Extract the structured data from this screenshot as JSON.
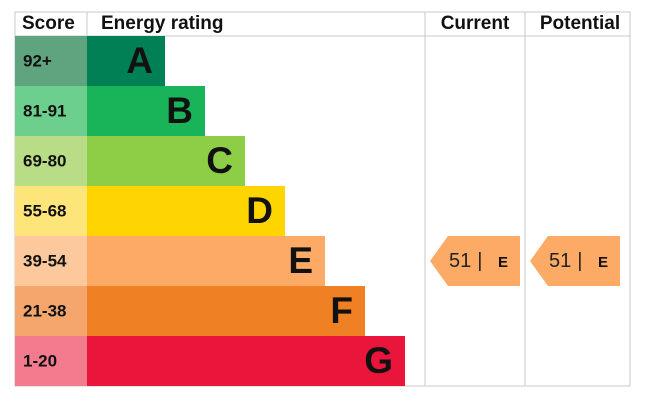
{
  "header": {
    "score": "Score",
    "rating": "Energy rating",
    "current": "Current",
    "potential": "Potential"
  },
  "bands": [
    {
      "score": "92+",
      "letter": "A",
      "color": "#008054",
      "light": "#5fa47e"
    },
    {
      "score": "81-91",
      "letter": "B",
      "color": "#19b459",
      "light": "#6ccf8d"
    },
    {
      "score": "69-80",
      "letter": "C",
      "color": "#8dce46",
      "light": "#b8dd86"
    },
    {
      "score": "55-68",
      "letter": "D",
      "color": "#ffd500",
      "light": "#fde57a"
    },
    {
      "score": "39-54",
      "letter": "E",
      "color": "#fcaa65",
      "light": "#fcc89c"
    },
    {
      "score": "21-38",
      "letter": "F",
      "color": "#ef8023",
      "light": "#f4a66c"
    },
    {
      "score": "1-20",
      "letter": "G",
      "color": "#e9153b",
      "light": "#f27b8e"
    }
  ],
  "current": {
    "score": "51",
    "separator": "|",
    "rating": "E"
  },
  "potential": {
    "score": "51",
    "separator": "|",
    "rating": "E"
  }
}
